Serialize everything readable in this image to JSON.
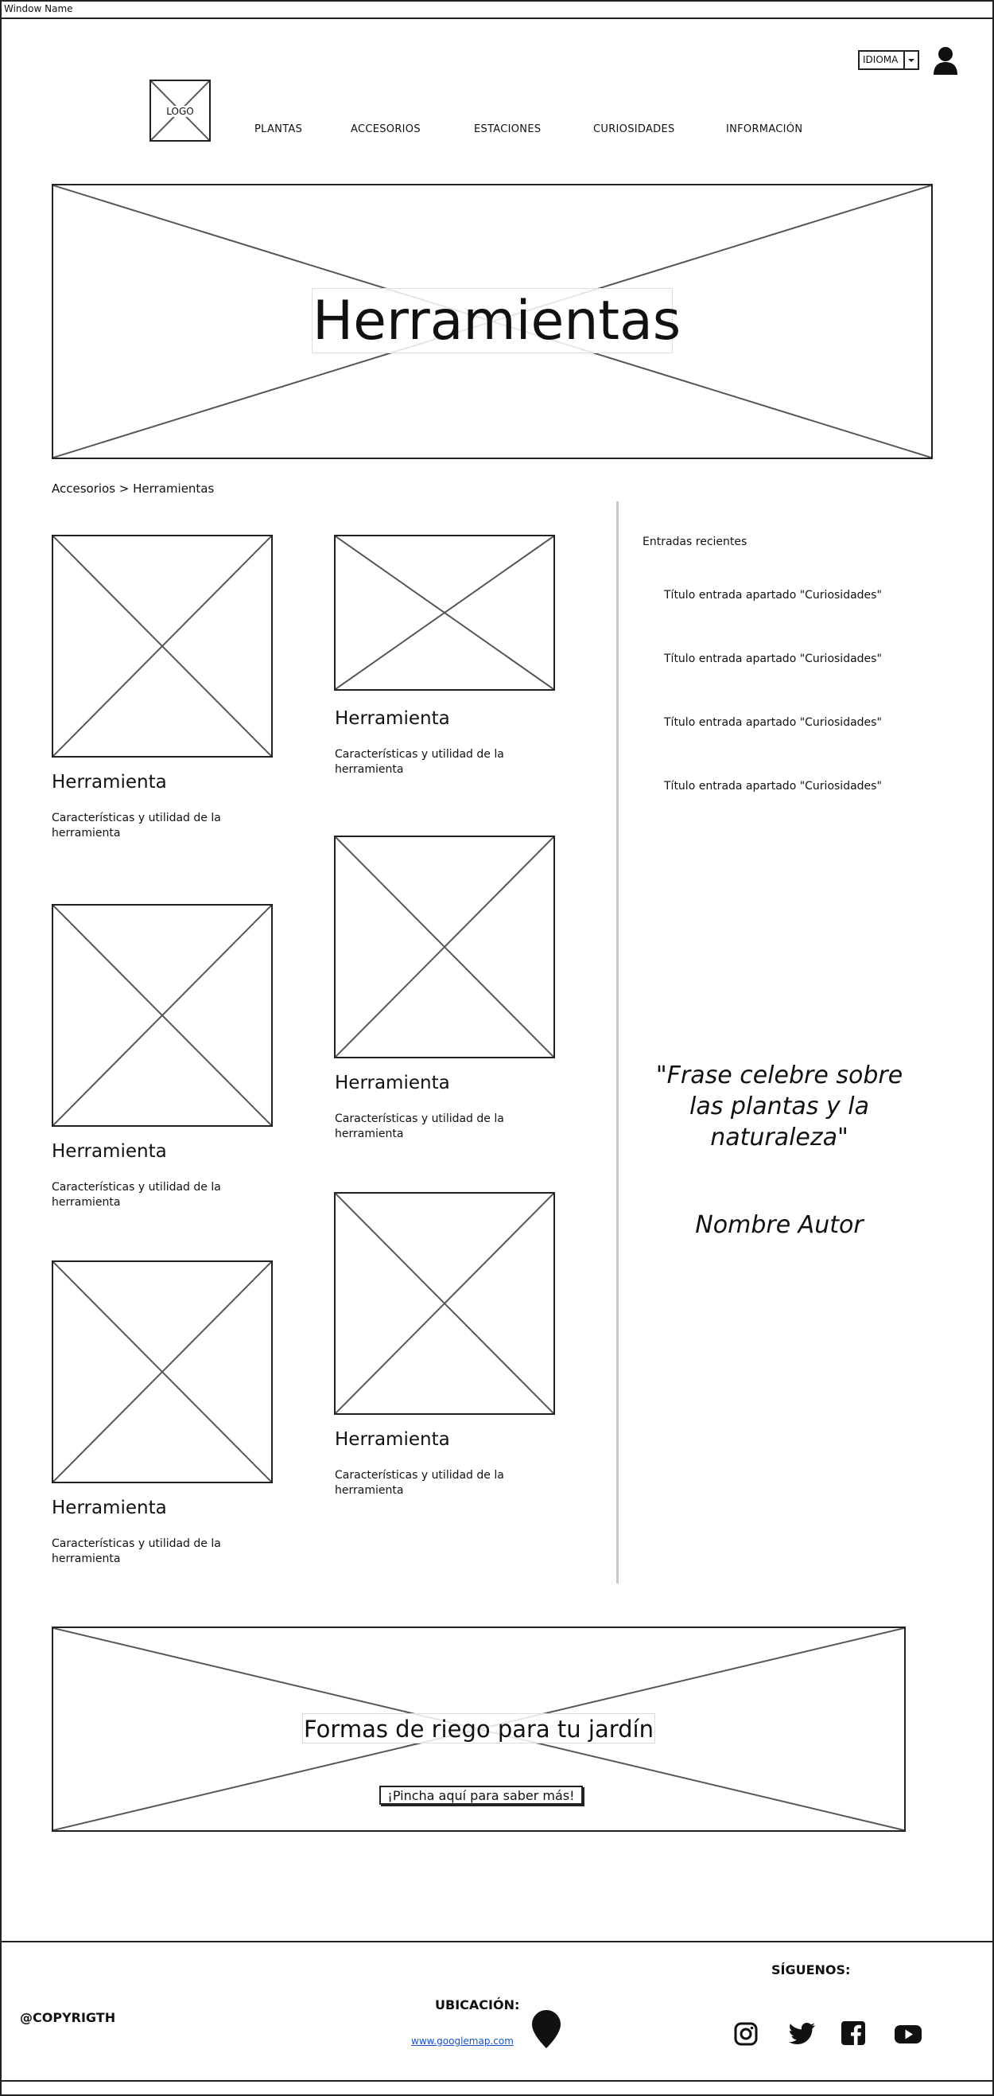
{
  "window": {
    "title": "Window Name"
  },
  "header": {
    "logo_label": "LOGO",
    "language": {
      "label": "IDIOMA"
    },
    "nav": [
      "PLANTAS",
      "ACCESORIOS",
      "ESTACIONES",
      "CURIOSIDADES",
      "INFORMACIÓN"
    ]
  },
  "hero": {
    "title": "Herramientas"
  },
  "breadcrumb": "Accesorios > Herramientas",
  "cards": [
    {
      "title": "Herramienta",
      "desc": "Características y utilidad de la herramienta"
    },
    {
      "title": "Herramienta",
      "desc": "Características y utilidad de la herramienta"
    },
    {
      "title": "Herramienta",
      "desc": "Características y utilidad de la herramienta"
    },
    {
      "title": "Herramienta",
      "desc": "Características y utilidad de la herramienta"
    },
    {
      "title": "Herramienta",
      "desc": "Características y utilidad de la herramienta"
    },
    {
      "title": "Herramienta",
      "desc": "Características y utilidad de la herramienta"
    }
  ],
  "sidebar": {
    "recent_heading": "Entradas recientes",
    "recent": [
      "Título entrada apartado \"Curiosidades\"",
      "Título entrada apartado \"Curiosidades\"",
      "Título entrada apartado \"Curiosidades\"",
      "Título entrada apartado \"Curiosidades\""
    ],
    "quote": "\"Frase celebre sobre las plantas y la naturaleza\"",
    "author": "Nombre Autor"
  },
  "promo": {
    "title": "Formas de riego para tu jardín",
    "button": "¡Pincha aquí para saber más!"
  },
  "footer": {
    "copyright": "@COPYRIGTH",
    "location_label": "UBICACIÓN:",
    "map_link": "www.googlemap.com",
    "follow_label": "SÍGUENOS:",
    "social": [
      "instagram-icon",
      "twitter-icon",
      "facebook-icon",
      "youtube-icon"
    ]
  }
}
